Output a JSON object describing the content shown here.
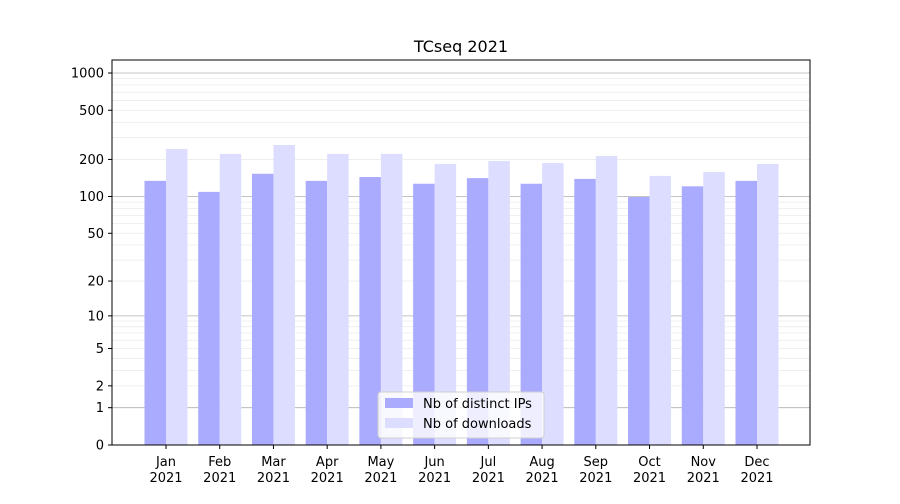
{
  "chart_data": {
    "type": "bar",
    "title": "TCseq 2021",
    "xlabel": "",
    "ylabel": "",
    "yscale": "log(1+y)",
    "ylim": [
      0,
      1273
    ],
    "yticks": [
      0,
      1,
      2,
      5,
      10,
      20,
      50,
      100,
      200,
      500,
      1000
    ],
    "ytick_labels": [
      "0",
      "1",
      "2",
      "5",
      "10",
      "20",
      "50",
      "100",
      "200",
      "500",
      "1000"
    ],
    "grid": true,
    "legend_position": "lower center",
    "categories": [
      "Jan\n2021",
      "Feb\n2021",
      "Mar\n2021",
      "Apr\n2021",
      "May\n2021",
      "Jun\n2021",
      "Jul\n2021",
      "Aug\n2021",
      "Sep\n2021",
      "Oct\n2021",
      "Nov\n2021",
      "Dec\n2021"
    ],
    "series": [
      {
        "name": "Nb of distinct IPs",
        "color": "#aaaaff",
        "values": [
          134,
          109,
          153,
          134,
          144,
          127,
          141,
          127,
          139,
          99,
          121,
          134
        ]
      },
      {
        "name": "Nb of downloads",
        "color": "#ddddff",
        "values": [
          243,
          222,
          262,
          222,
          222,
          184,
          194,
          187,
          213,
          147,
          158,
          184
        ]
      }
    ]
  }
}
